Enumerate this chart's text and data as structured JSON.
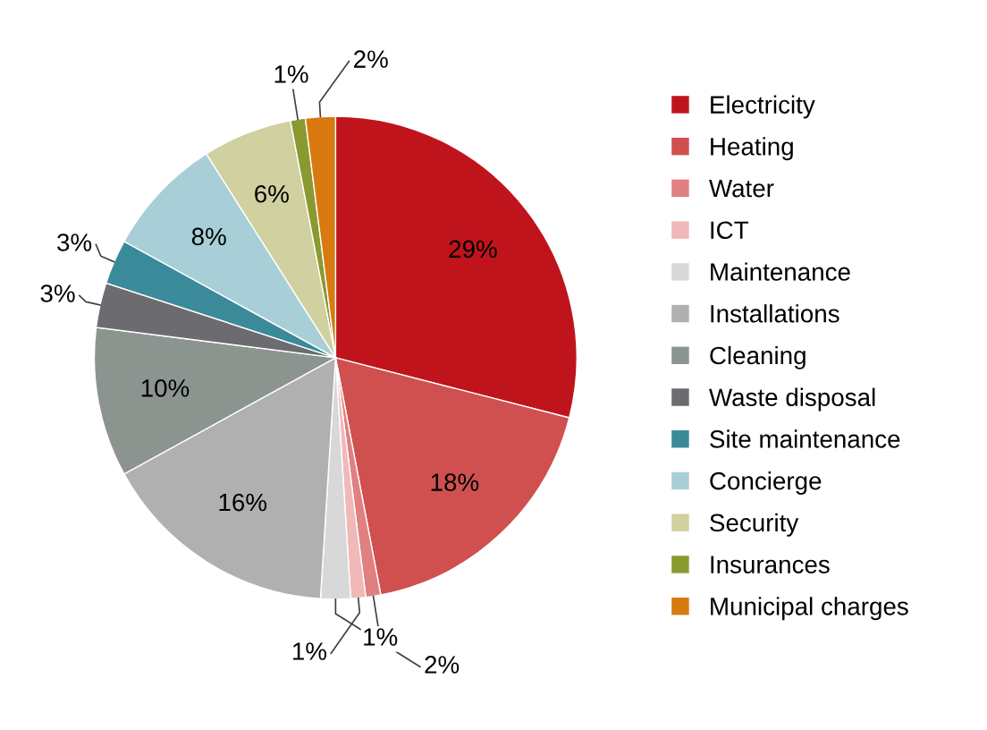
{
  "chart_data": {
    "type": "pie",
    "categories": [
      "Electricity",
      "Heating",
      "Water",
      "ICT",
      "Maintenance",
      "Installations",
      "Cleaning",
      "Waste disposal",
      "Site maintenance",
      "Concierge",
      "Security",
      "Insurances",
      "Municipal charges"
    ],
    "values": [
      29,
      18,
      1,
      1,
      2,
      16,
      10,
      3,
      3,
      8,
      6,
      1,
      2
    ],
    "value_labels": [
      "29%",
      "18%",
      "1%",
      "1%",
      "2%",
      "16%",
      "10%",
      "3%",
      "3%",
      "8%",
      "6%",
      "1%",
      "2%"
    ],
    "colors": [
      "#c0141c",
      "#d05050",
      "#e08080",
      "#f0b8b8",
      "#d8d8d8",
      "#b0b0b0",
      "#8c9490",
      "#6c6c70",
      "#3a8a9a",
      "#a8cfd8",
      "#d0d0a0",
      "#8a9a30",
      "#d87a10"
    ],
    "legend": "right"
  }
}
